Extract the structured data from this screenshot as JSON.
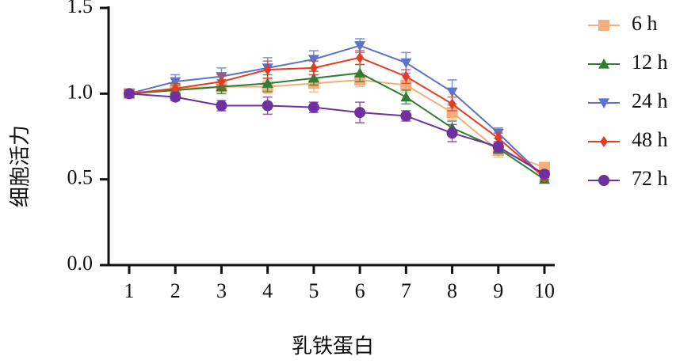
{
  "chart_data": {
    "type": "line",
    "xlabel": "乳铁蛋白",
    "ylabel": "细胞活力",
    "categories": [
      "1",
      "2",
      "3",
      "4",
      "5",
      "6",
      "7",
      "8",
      "9",
      "10"
    ],
    "ylim": [
      0,
      1.5
    ],
    "yticks": [
      {
        "value": 0,
        "label": "0.0"
      },
      {
        "value": 0.5,
        "label": "0.5"
      },
      {
        "value": 1,
        "label": "1.0"
      },
      {
        "value": 1.5,
        "label": "1.5"
      }
    ],
    "grid": false,
    "legend": "right",
    "series": [
      {
        "name": "6 h",
        "color": "#f4ad7c",
        "marker": "square",
        "values": [
          1.0,
          1.03,
          1.04,
          1.04,
          1.06,
          1.08,
          1.05,
          0.89,
          0.67,
          0.57
        ],
        "errors": [
          0.01,
          0.03,
          0.04,
          0.04,
          0.05,
          0.04,
          0.04,
          0.04,
          0.04,
          0.02
        ]
      },
      {
        "name": "12 h",
        "color": "#2e7d32",
        "marker": "triangle-up",
        "values": [
          1.0,
          1.02,
          1.04,
          1.06,
          1.09,
          1.12,
          0.98,
          0.8,
          0.68,
          0.5
        ],
        "errors": [
          0.01,
          0.03,
          0.04,
          0.05,
          0.04,
          0.05,
          0.04,
          0.04,
          0.03,
          0.01
        ]
      },
      {
        "name": "24 h",
        "color": "#5b73c8",
        "marker": "triangle-down",
        "values": [
          1.0,
          1.07,
          1.1,
          1.15,
          1.2,
          1.28,
          1.18,
          1.01,
          0.77,
          0.51
        ],
        "errors": [
          0.01,
          0.04,
          0.05,
          0.06,
          0.05,
          0.04,
          0.06,
          0.07,
          0.03,
          0.01
        ]
      },
      {
        "name": "48 h",
        "color": "#e63b24",
        "marker": "diamond",
        "values": [
          1.0,
          1.03,
          1.07,
          1.14,
          1.15,
          1.21,
          1.1,
          0.94,
          0.74,
          0.51
        ],
        "errors": [
          0.01,
          0.03,
          0.04,
          0.05,
          0.04,
          0.04,
          0.04,
          0.04,
          0.03,
          0.01
        ]
      },
      {
        "name": "72 h",
        "color": "#7030a0",
        "marker": "circle",
        "values": [
          1.0,
          0.98,
          0.93,
          0.93,
          0.92,
          0.89,
          0.87,
          0.77,
          0.69,
          0.53
        ],
        "errors": [
          0.01,
          0.02,
          0.03,
          0.05,
          0.03,
          0.06,
          0.03,
          0.05,
          0.03,
          0.02
        ]
      }
    ]
  }
}
